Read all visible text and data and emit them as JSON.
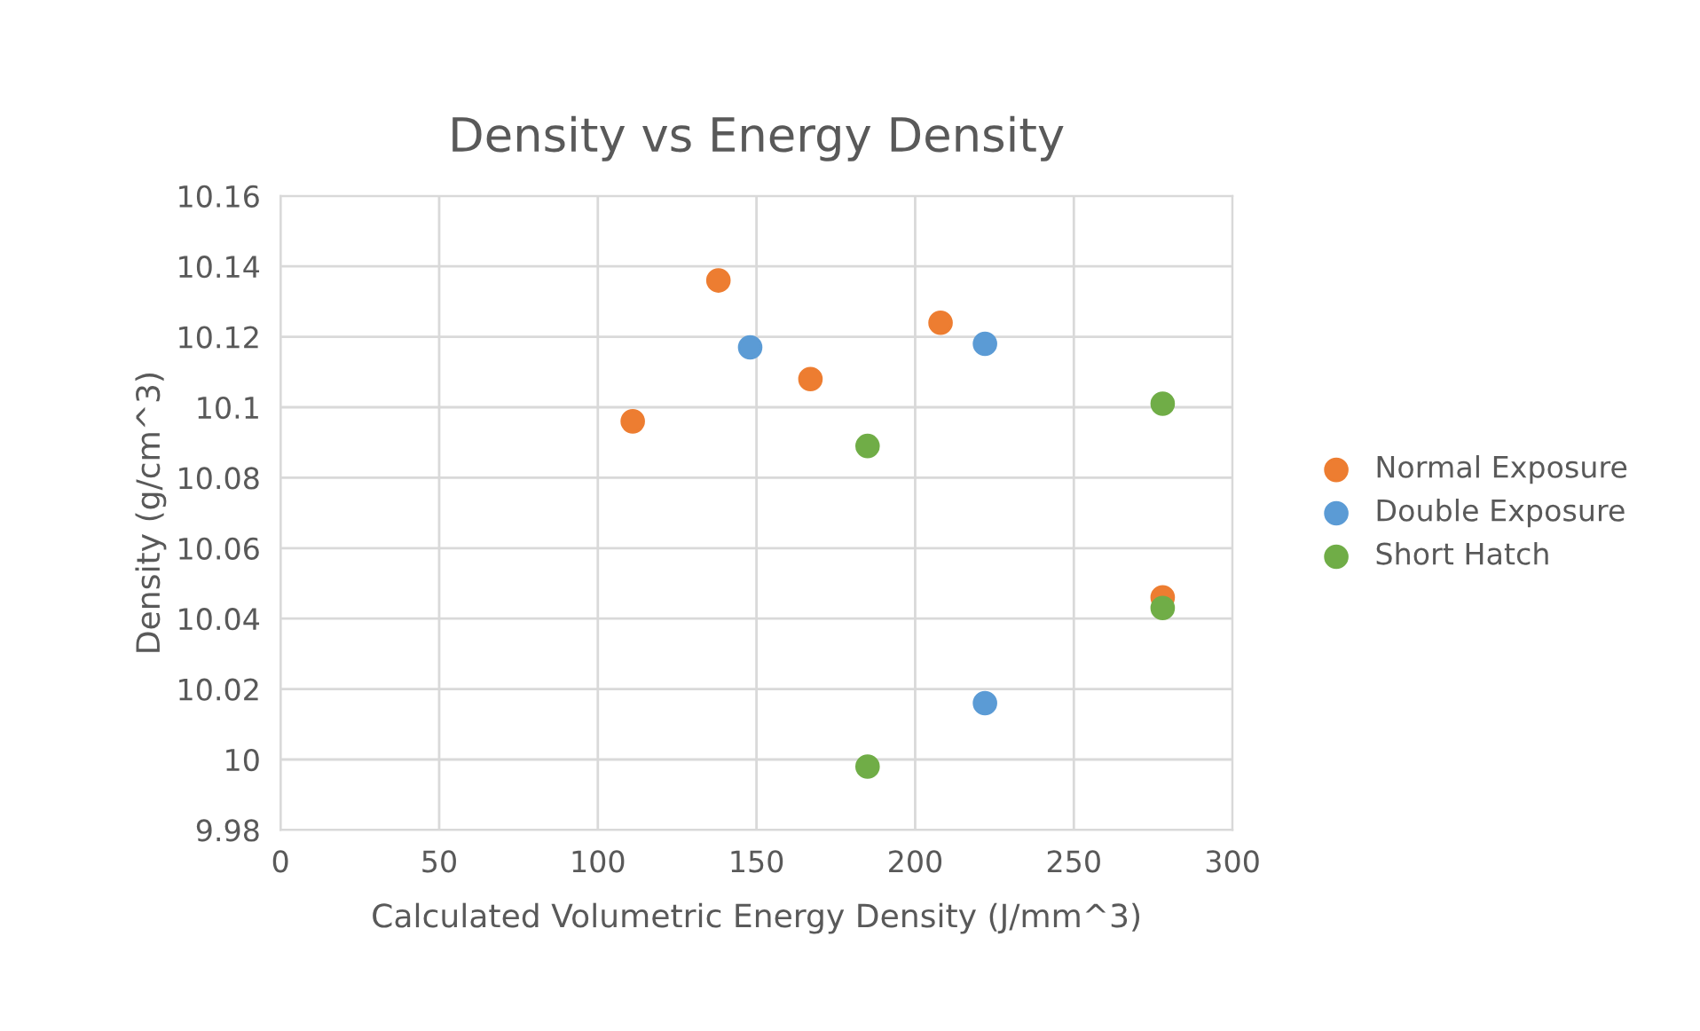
{
  "chart_data": {
    "type": "scatter",
    "title": "Density vs Energy Density",
    "xlabel": "Calculated Volumetric Energy Density (J/mm^3)",
    "ylabel": "Density (g/cm^3)",
    "xlim": [
      0,
      300
    ],
    "xticks": [
      0,
      50,
      100,
      150,
      200,
      250,
      300
    ],
    "ylim": [
      9.98,
      10.16
    ],
    "yticks": [
      9.98,
      10,
      10.02,
      10.04,
      10.06,
      10.08,
      10.1,
      10.12,
      10.14,
      10.16
    ],
    "grid": true,
    "legend": "right",
    "marker": "circle",
    "series": [
      {
        "name": "Normal Exposure",
        "color": "#ed7d31",
        "x": [
          111,
          138,
          167,
          208,
          278
        ],
        "values": [
          10.096,
          10.136,
          10.108,
          10.124,
          10.046
        ]
      },
      {
        "name": "Double Exposure",
        "color": "#5b9bd5",
        "x": [
          148,
          222,
          222
        ],
        "values": [
          10.117,
          10.118,
          10.016
        ]
      },
      {
        "name": "Short Hatch",
        "color": "#70ad47",
        "x": [
          185,
          278,
          278,
          185
        ],
        "values": [
          10.089,
          10.101,
          10.043,
          9.998
        ]
      }
    ]
  }
}
